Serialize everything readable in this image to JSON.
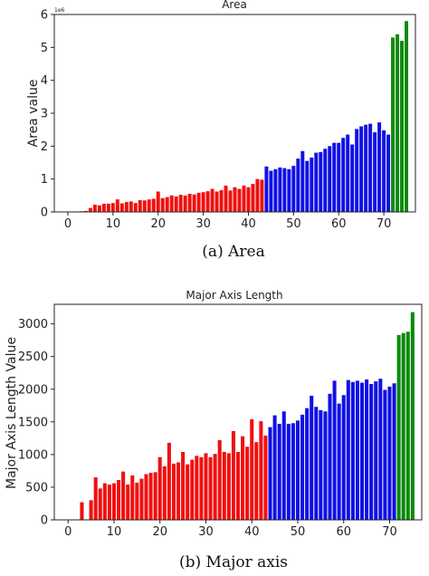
{
  "captions": [
    "(a) Area",
    "(b) Major axis"
  ],
  "colors": {
    "group1": "#f01010",
    "group2": "#1010e6",
    "group3": "#0a8a0a"
  },
  "chart_data": [
    {
      "type": "bar",
      "title": "Area",
      "ylabel": "Area value",
      "xlabel": "",
      "xlim": [
        -3,
        77
      ],
      "ylim": [
        0,
        6
      ],
      "x_ticks": [
        "0",
        "10",
        "20",
        "30",
        "40",
        "50",
        "60",
        "70"
      ],
      "y_ticks": [
        "0",
        "1",
        "2",
        "3",
        "4",
        "5",
        "6"
      ],
      "scale_label": "1e6",
      "grid": false,
      "series": [
        {
          "x": [
            0,
            1,
            2,
            3,
            4,
            5,
            6,
            7,
            8,
            9,
            10,
            11,
            12,
            13,
            14,
            15,
            16,
            17,
            18,
            19,
            20,
            21,
            22,
            23,
            24,
            25,
            26,
            27,
            28,
            29,
            30,
            31,
            32,
            33,
            34,
            35,
            36,
            37,
            38,
            39,
            40,
            41,
            42,
            43
          ],
          "values": [
            0,
            0,
            0,
            0.02,
            0.03,
            0.12,
            0.22,
            0.2,
            0.25,
            0.25,
            0.27,
            0.38,
            0.26,
            0.3,
            0.32,
            0.27,
            0.36,
            0.35,
            0.38,
            0.4,
            0.62,
            0.42,
            0.45,
            0.5,
            0.47,
            0.52,
            0.5,
            0.55,
            0.53,
            0.58,
            0.6,
            0.63,
            0.7,
            0.62,
            0.66,
            0.8,
            0.65,
            0.75,
            0.7,
            0.8,
            0.75,
            0.85,
            1.0,
            0.98
          ]
        },
        {
          "x": [
            44,
            45,
            46,
            47,
            48,
            49,
            50,
            51,
            52,
            53,
            54,
            55,
            56,
            57,
            58,
            59,
            60,
            61,
            62,
            63,
            64,
            65,
            66,
            67,
            68,
            69,
            70,
            71
          ],
          "values": [
            1.38,
            1.25,
            1.3,
            1.35,
            1.33,
            1.3,
            1.4,
            1.62,
            1.85,
            1.55,
            1.65,
            1.8,
            1.82,
            1.92,
            2.0,
            2.1,
            2.1,
            2.25,
            2.35,
            2.05,
            2.52,
            2.6,
            2.65,
            2.68,
            2.42,
            2.72,
            2.48,
            2.35
          ]
        },
        {
          "x": [
            72,
            73,
            74,
            75
          ],
          "values": [
            5.3,
            5.4,
            5.2,
            5.8
          ]
        }
      ]
    },
    {
      "type": "bar",
      "title": "Major Axis Length",
      "ylabel": "Major Axis Length Value",
      "xlabel": "",
      "xlim": [
        -3,
        77
      ],
      "ylim": [
        0,
        3300
      ],
      "x_ticks": [
        "0",
        "10",
        "20",
        "30",
        "40",
        "50",
        "60",
        "70"
      ],
      "y_ticks": [
        "0",
        "500",
        "1000",
        "1500",
        "2000",
        "2500",
        "3000"
      ],
      "grid": false,
      "series": [
        {
          "x": [
            0,
            1,
            2,
            3,
            4,
            5,
            6,
            7,
            8,
            9,
            10,
            11,
            12,
            13,
            14,
            15,
            16,
            17,
            18,
            19,
            20,
            21,
            22,
            23,
            24,
            25,
            26,
            27,
            28,
            29,
            30,
            31,
            32,
            33,
            34,
            35,
            36,
            37,
            38,
            39,
            40,
            41,
            42,
            43
          ],
          "values": [
            0,
            0,
            0,
            270,
            0,
            300,
            650,
            480,
            560,
            540,
            560,
            610,
            740,
            540,
            680,
            570,
            630,
            700,
            720,
            730,
            960,
            820,
            1180,
            860,
            880,
            1040,
            850,
            920,
            980,
            960,
            1020,
            960,
            1010,
            1220,
            1040,
            1020,
            1360,
            1040,
            1280,
            1120,
            1540,
            1190,
            1510,
            1290
          ]
        },
        {
          "x": [
            44,
            45,
            46,
            47,
            48,
            49,
            50,
            51,
            52,
            53,
            54,
            55,
            56,
            57,
            58,
            59,
            60,
            61,
            62,
            63,
            64,
            65,
            66,
            67,
            68,
            69,
            70,
            71
          ],
          "values": [
            1420,
            1600,
            1470,
            1660,
            1470,
            1480,
            1520,
            1610,
            1710,
            1900,
            1730,
            1680,
            1660,
            1930,
            2130,
            1780,
            1910,
            2140,
            2110,
            2130,
            2100,
            2150,
            2080,
            2120,
            2160,
            1990,
            2040,
            2090
          ]
        },
        {
          "x": [
            72,
            73,
            74,
            75
          ],
          "values": [
            2830,
            2860,
            2880,
            3180
          ]
        }
      ]
    }
  ]
}
